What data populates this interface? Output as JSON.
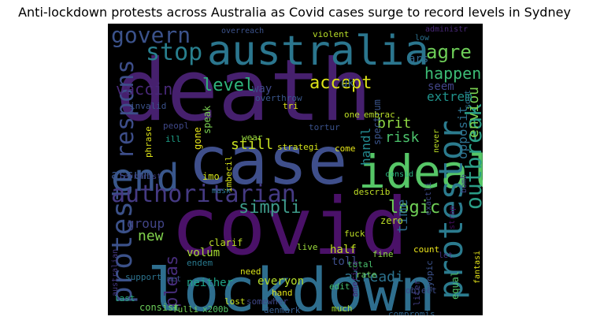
{
  "chart_data": {
    "type": "wordcloud",
    "title": "Anti-lockdown protests across Australia as Covid cases surge to record levels in Sydney",
    "background": "#000000",
    "colormap": "viridis",
    "words": [
      {
        "text": "death",
        "color": "#46206e"
      },
      {
        "text": "covid",
        "color": "#4a1168"
      },
      {
        "text": "case",
        "color": "#3f4f8b"
      },
      {
        "text": "lockdown",
        "color": "#2e6e8e"
      },
      {
        "text": "ideal",
        "color": "#56c667"
      },
      {
        "text": "australia",
        "color": "#2b768e"
      },
      {
        "text": "end",
        "color": "#39578c"
      },
      {
        "text": "protestor",
        "color": "#2b7b8e"
      },
      {
        "text": "protest",
        "color": "#3b5189"
      },
      {
        "text": "authoritarian",
        "color": "#453a83"
      },
      {
        "text": "respons",
        "color": "#3d4e8a"
      },
      {
        "text": "outbreak",
        "color": "#2a9d86"
      },
      {
        "text": "govern",
        "color": "#3b528b"
      },
      {
        "text": "stop",
        "color": "#287f8e"
      },
      {
        "text": "agre",
        "color": "#6ece58"
      },
      {
        "text": "pleas",
        "color": "#472d7b"
      },
      {
        "text": "simpli",
        "color": "#3e9b8a"
      },
      {
        "text": "logic",
        "color": "#6fcf56"
      },
      {
        "text": "level",
        "color": "#2fb47c"
      },
      {
        "text": "accept",
        "color": "#dde318"
      },
      {
        "text": "happen",
        "color": "#3cbb75"
      },
      {
        "text": "vaccin",
        "color": "#482878"
      },
      {
        "text": "alreadi",
        "color": "#2c728e"
      },
      {
        "text": "brit",
        "color": "#8fd744"
      },
      {
        "text": "enviou",
        "color": "#7ad151"
      },
      {
        "text": "risk",
        "color": "#4cc26c"
      },
      {
        "text": "still",
        "color": "#c8e020"
      },
      {
        "text": "time",
        "color": "#2f6c8e"
      },
      {
        "text": "new",
        "color": "#81d34d"
      },
      {
        "text": "assum",
        "color": "#3a548c"
      },
      {
        "text": "group",
        "color": "#414487"
      },
      {
        "text": "extrem",
        "color": "#20938c"
      },
      {
        "text": "handl",
        "color": "#23898e"
      },
      {
        "text": "opposit",
        "color": "#2d708e"
      },
      {
        "text": "everyon",
        "color": "#b5de2b"
      },
      {
        "text": "neither",
        "color": "#1fa287"
      },
      {
        "text": "half",
        "color": "#c2df23"
      },
      {
        "text": "toll",
        "color": "#3d4d8a"
      },
      {
        "text": "volum",
        "color": "#a8db34"
      },
      {
        "text": "uk",
        "color": "#365d8d"
      },
      {
        "text": "seem",
        "color": "#414487"
      },
      {
        "text": "ars",
        "color": "#31688e"
      },
      {
        "text": "way",
        "color": "#3f4889"
      },
      {
        "text": "spectrum",
        "color": "#3a548c"
      },
      {
        "text": "speak",
        "color": "#7ad151"
      },
      {
        "text": "gone",
        "color": "#e5e419"
      },
      {
        "text": "imo",
        "color": "#d2e21b"
      },
      {
        "text": "clarif",
        "color": "#bddf26"
      },
      {
        "text": "zero",
        "color": "#bddf26"
      },
      {
        "text": "consist",
        "color": "#6ccd5a"
      },
      {
        "text": "equal",
        "color": "#52c569"
      },
      {
        "text": "rate",
        "color": "#6ccd5a"
      },
      {
        "text": "edit",
        "color": "#46c06f"
      },
      {
        "text": "total",
        "color": "#4ac16d"
      },
      {
        "text": "need",
        "color": "#d8e219"
      },
      {
        "text": "hand",
        "color": "#e2e418"
      },
      {
        "text": "lost",
        "color": "#c8e020"
      },
      {
        "text": "support",
        "color": "#2c738e"
      },
      {
        "text": "endem",
        "color": "#29798e"
      },
      {
        "text": "live",
        "color": "#9bd93c"
      },
      {
        "text": "fuck",
        "color": "#bddf26"
      },
      {
        "text": "count",
        "color": "#ece51b"
      },
      {
        "text": "fine",
        "color": "#8fd744"
      },
      {
        "text": "object",
        "color": "#3e4c8a"
      },
      {
        "text": "america",
        "color": "#482173"
      },
      {
        "text": "myopic",
        "color": "#3b528b"
      },
      {
        "text": "liter",
        "color": "#433e85"
      },
      {
        "text": "compromis",
        "color": "#32658e"
      },
      {
        "text": "much",
        "color": "#a2da37"
      },
      {
        "text": "denmark",
        "color": "#365c8d"
      },
      {
        "text": "somewher",
        "color": "#3f4788"
      },
      {
        "text": "x200b",
        "color": "#54c568"
      },
      {
        "text": "fulli",
        "color": "#73d056"
      },
      {
        "text": "last",
        "color": "#29af7f"
      },
      {
        "text": "australian",
        "color": "#453882"
      },
      {
        "text": "met",
        "color": "#3b528b"
      },
      {
        "text": "fantasi",
        "color": "#e5e419"
      },
      {
        "text": "let",
        "color": "#46337f"
      },
      {
        "text": "strap",
        "color": "#470e61"
      },
      {
        "text": "exactli",
        "color": "#3e4a89"
      },
      {
        "text": "bomb",
        "color": "#414487"
      },
      {
        "text": "describ",
        "color": "#c0df25"
      },
      {
        "text": "imbecil",
        "color": "#d5e21a"
      },
      {
        "text": "mask",
        "color": "#2a768e"
      },
      {
        "text": "terrorist",
        "color": "#424186"
      },
      {
        "text": "consid",
        "color": "#29af7f"
      },
      {
        "text": "never",
        "color": "#bddf26"
      },
      {
        "text": "sort",
        "color": "#2c728e"
      },
      {
        "text": "come",
        "color": "#e5e419"
      },
      {
        "text": "strategi",
        "color": "#d2e21b"
      },
      {
        "text": "wear",
        "color": "#95d840"
      },
      {
        "text": "peopl",
        "color": "#3f4788"
      },
      {
        "text": "phrase",
        "color": "#dde318"
      },
      {
        "text": "ill",
        "color": "#1fa188"
      },
      {
        "text": "tortur",
        "color": "#3b528b"
      },
      {
        "text": "tri",
        "color": "#e5e419"
      },
      {
        "text": "one",
        "color": "#bddf26"
      },
      {
        "text": "embrac",
        "color": "#b8de29"
      },
      {
        "text": "invalid",
        "color": "#3b528b"
      },
      {
        "text": "overthrow",
        "color": "#39568c"
      },
      {
        "text": "violent",
        "color": "#b8de29"
      },
      {
        "text": "overreach",
        "color": "#3b528b"
      },
      {
        "text": "administr",
        "color": "#482777"
      },
      {
        "text": "low",
        "color": "#2c728e"
      }
    ]
  }
}
